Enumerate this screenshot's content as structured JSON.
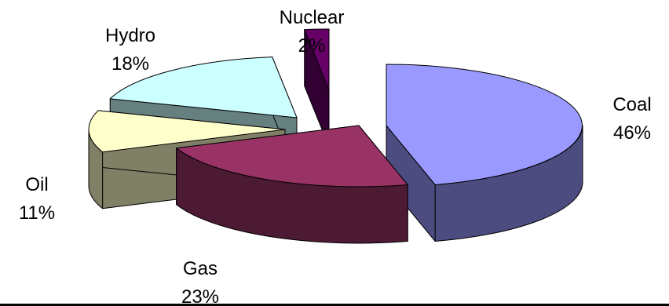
{
  "chart_data": {
    "type": "pie",
    "style": "3d-exploded",
    "slices": [
      {
        "label": "Coal",
        "value": 46,
        "percent_text": "46%",
        "color": "#9999ff",
        "side_color": "#4c4c80"
      },
      {
        "label": "Gas",
        "value": 23,
        "percent_text": "23%",
        "color": "#993366",
        "side_color": "#4c1a33"
      },
      {
        "label": "Oil",
        "value": 11,
        "percent_text": "11%",
        "color": "#ffffcc",
        "side_color": "#808066"
      },
      {
        "label": "Hydro",
        "value": 18,
        "percent_text": "18%",
        "color": "#ccffff",
        "side_color": "#668080"
      },
      {
        "label": "Nuclear",
        "value": 2,
        "percent_text": "2%",
        "color": "#660066",
        "side_color": "#330033"
      }
    ]
  }
}
